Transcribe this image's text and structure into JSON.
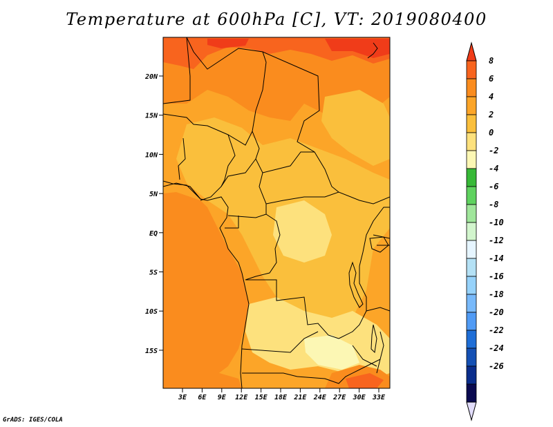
{
  "title": "Temperature at 600hPa [C], VT: 2019080400",
  "credit": "GrADS: IGES/COLA",
  "map": {
    "lat_ticks": [
      "20N",
      "15N",
      "10N",
      "5N",
      "EQ",
      "5S",
      "10S",
      "15S"
    ],
    "lon_ticks": [
      "3E",
      "6E",
      "9E",
      "12E",
      "15E",
      "18E",
      "21E",
      "24E",
      "27E",
      "30E",
      "33E"
    ]
  },
  "colorbar": {
    "labels": [
      "8",
      "6",
      "4",
      "2",
      "0",
      "-2",
      "-4",
      "-6",
      "-8",
      "-10",
      "-12",
      "-14",
      "-16",
      "-18",
      "-20",
      "-22",
      "-24",
      "-26"
    ],
    "colors": [
      "#f03c19",
      "#f8641e",
      "#fa8c1e",
      "#fca528",
      "#fabf3c",
      "#fde17d",
      "#fcf7b4",
      "#37b937",
      "#5fd25f",
      "#a0e69b",
      "#d2f5cd",
      "#e6f5ff",
      "#b4e1f5",
      "#96d2fa",
      "#78b9fa",
      "#509bf5",
      "#1e6ed7",
      "#1450b4",
      "#0a2d8c",
      "#0a0a50",
      "#e1dcfa"
    ]
  }
}
